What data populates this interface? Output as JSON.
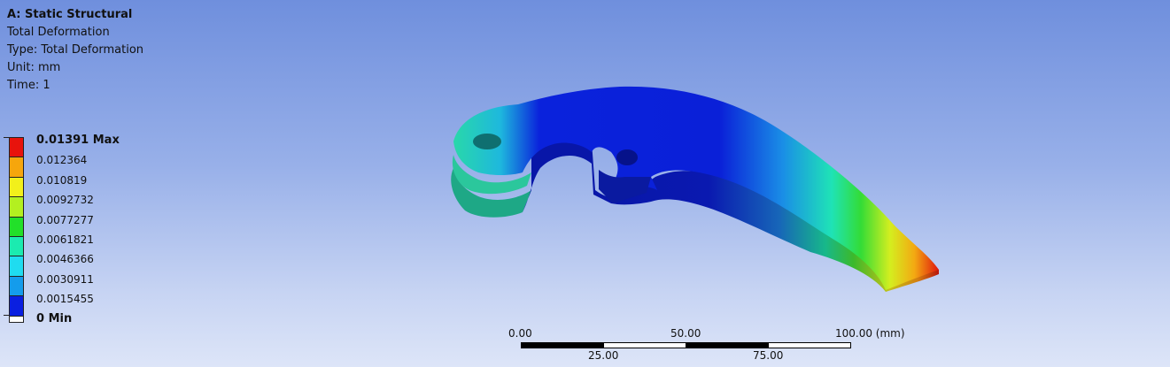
{
  "info": {
    "title": "A: Static Structural",
    "result_name": "Total Deformation",
    "type_line": "Type: Total Deformation",
    "unit_line": "Unit: mm",
    "time_line": "Time: 1"
  },
  "legend": {
    "max_label": "0.01391 Max",
    "min_label": "0 Min",
    "levels": [
      "0.012364",
      "0.010819",
      "0.0092732",
      "0.0077277",
      "0.0061821",
      "0.0046366",
      "0.0030911",
      "0.0015455"
    ],
    "colors": [
      "#e8130c",
      "#f6a60c",
      "#f2f01b",
      "#b3f020",
      "#22e029",
      "#1bebb0",
      "#1fdcf0",
      "#149cec",
      "#0a1fe0"
    ]
  },
  "scale_bar": {
    "top_labels": [
      "0.00",
      "50.00",
      "100.00 (mm)"
    ],
    "bottom_labels": [
      "25.00",
      "75.00"
    ]
  }
}
